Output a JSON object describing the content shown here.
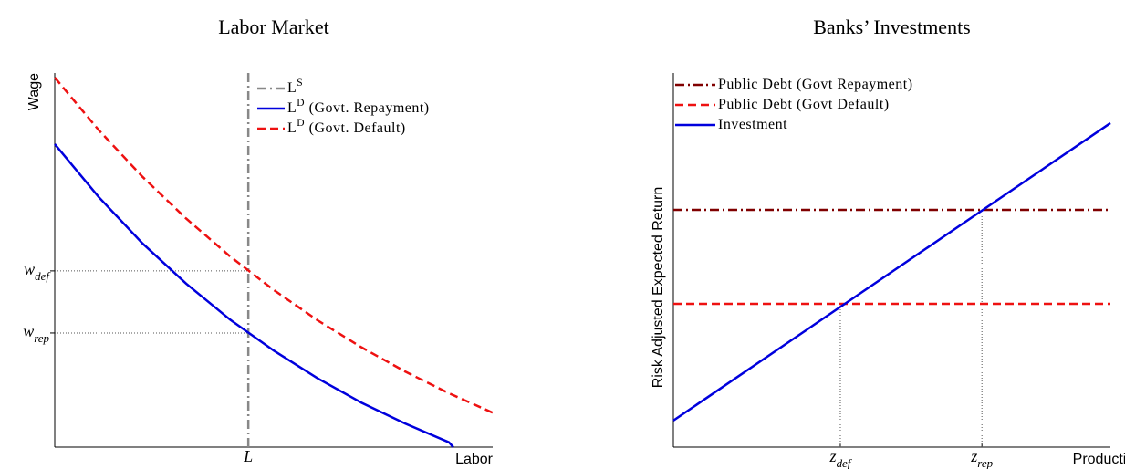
{
  "chart_data": [
    {
      "type": "line",
      "title": "Labor Market",
      "xlabel": "Labor",
      "ylabel": "Wage",
      "xlim": [
        0,
        10
      ],
      "ylim": [
        0,
        10
      ],
      "xticks": [
        {
          "value": 4.42,
          "label": "L"
        }
      ],
      "yticks": [
        {
          "value": 3.05,
          "label": "w_rep"
        },
        {
          "value": 4.71,
          "label": "w_def"
        }
      ],
      "guides": "horizontal",
      "legend": "upper right",
      "series": [
        {
          "name": "L^S",
          "color": "#888888",
          "dash": "dashdot",
          "x": [
            4.42,
            4.42
          ],
          "values": [
            0,
            10
          ]
        },
        {
          "name": "L^D (Govt. Repayment)",
          "color": "#0000dd",
          "dash": "solid",
          "x": [
            0,
            1,
            2,
            3,
            4,
            5,
            6,
            7,
            8,
            9,
            9.1
          ],
          "values": [
            8.1,
            6.69,
            5.45,
            4.37,
            3.41,
            2.58,
            1.84,
            1.19,
            0.63,
            0.13,
            0
          ]
        },
        {
          "name": "L^D (Govt. Default)",
          "color": "#ee1111",
          "dash": "dashed",
          "x": [
            0,
            1,
            2,
            3,
            4,
            5,
            6,
            7,
            8,
            9,
            10
          ],
          "values": [
            9.88,
            8.48,
            7.23,
            6.11,
            5.1,
            4.2,
            3.39,
            2.67,
            2.02,
            1.44,
            0.92
          ]
        }
      ]
    },
    {
      "type": "line",
      "title": "Banks’ Investments",
      "xlabel": "Productivity",
      "ylabel": "Risk Adjusted Expected Return",
      "xlim": [
        0,
        10
      ],
      "ylim": [
        0,
        10
      ],
      "xticks": [
        {
          "value": 3.82,
          "label": "z_def"
        },
        {
          "value": 7.06,
          "label": "z_rep"
        }
      ],
      "yticks": [],
      "guides": "vertical",
      "legend": "upper left",
      "series": [
        {
          "name": "Public Debt (Govt Repayment)",
          "color": "#800000",
          "dash": "dashdot",
          "x": [
            0,
            10
          ],
          "values": [
            6.34,
            6.34
          ]
        },
        {
          "name": "Public Debt (Govt Default)",
          "color": "#ee1111",
          "dash": "dashed",
          "x": [
            0,
            10
          ],
          "values": [
            3.83,
            3.83
          ]
        },
        {
          "name": "Investment",
          "color": "#0000dd",
          "dash": "solid",
          "x": [
            0,
            10
          ],
          "values": [
            0.71,
            8.66
          ]
        }
      ]
    }
  ]
}
